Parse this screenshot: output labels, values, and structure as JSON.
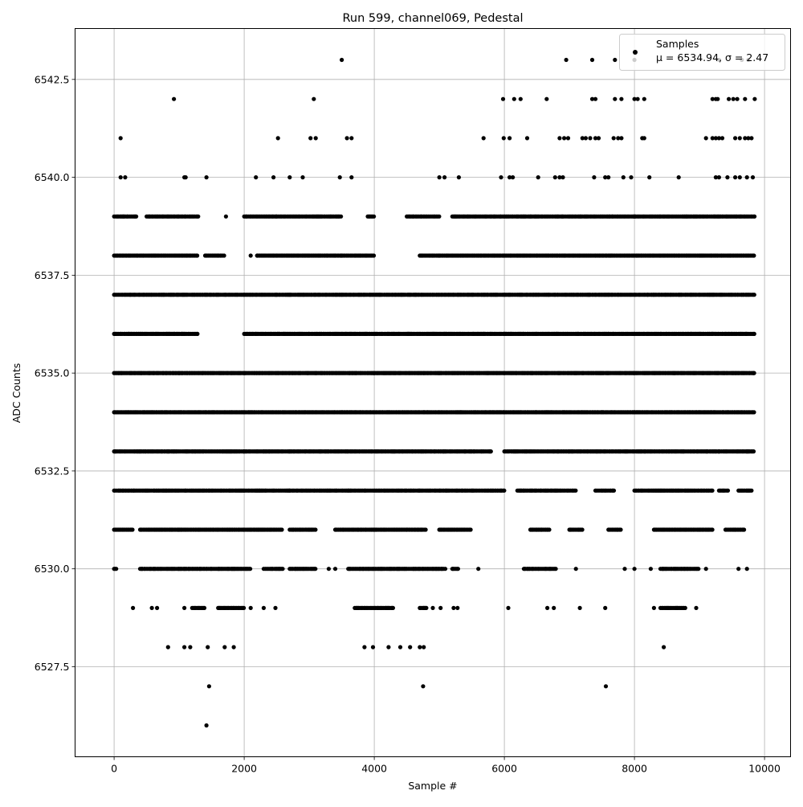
{
  "chart_data": {
    "type": "scatter",
    "title": "Run 599, channel069, Pedestal",
    "xlabel": "Sample #",
    "ylabel": "ADC Counts",
    "xlim": [
      -600,
      10400
    ],
    "ylim": [
      6525.2,
      6543.8
    ],
    "x_ticks": [
      0,
      2000,
      4000,
      6000,
      8000,
      10000
    ],
    "x_tick_labels": [
      "0",
      "2000",
      "4000",
      "6000",
      "8000",
      "10000"
    ],
    "y_ticks": [
      6527.5,
      6530.0,
      6532.5,
      6535.0,
      6537.5,
      6540.0,
      6542.5
    ],
    "y_tick_labels": [
      "6527.5",
      "6530.0",
      "6532.5",
      "6535.0",
      "6537.5",
      "6540.0",
      "6542.5"
    ],
    "grid": true,
    "legend_position": "top-right",
    "legend": {
      "label": "Samples",
      "stats": "μ = 6534.94, σ = 2.47"
    },
    "marker_color": "#000000",
    "series": [
      {
        "name": "Samples",
        "level_runs": {
          "6539": [
            [
              0,
              350
            ],
            [
              500,
              1300
            ],
            [
              2000,
              2500
            ],
            [
              2500,
              3500
            ],
            [
              3900,
              4000
            ],
            [
              4500,
              5000
            ],
            [
              5200,
              5800
            ],
            [
              5800,
              6400
            ],
            [
              6400,
              7000
            ],
            [
              7000,
              8000
            ],
            [
              8000,
              8800
            ],
            [
              8800,
              9850
            ]
          ],
          "6538": [
            [
              0,
              1300
            ],
            [
              1400,
              1700
            ],
            [
              2200,
              2500
            ],
            [
              2500,
              3500
            ],
            [
              3500,
              4000
            ],
            [
              4700,
              5000
            ],
            [
              5000,
              5600
            ],
            [
              5600,
              6300
            ],
            [
              6300,
              7000
            ],
            [
              7000,
              8000
            ],
            [
              8000,
              8900
            ],
            [
              8900,
              9850
            ]
          ],
          "6537": [
            [
              0,
              1700
            ],
            [
              1700,
              2500
            ],
            [
              2500,
              3500
            ],
            [
              3500,
              4200
            ],
            [
              4200,
              5000
            ],
            [
              5000,
              5800
            ],
            [
              5800,
              6500
            ],
            [
              6500,
              7300
            ],
            [
              7300,
              8200
            ],
            [
              8200,
              9000
            ],
            [
              9000,
              9850
            ]
          ],
          "6536": [
            [
              0,
              1300
            ],
            [
              2000,
              2600
            ],
            [
              2600,
              3500
            ],
            [
              3500,
              4300
            ],
            [
              4300,
              5200
            ],
            [
              5200,
              6000
            ],
            [
              6000,
              6800
            ],
            [
              6800,
              7600
            ],
            [
              7600,
              8500
            ],
            [
              8500,
              9200
            ],
            [
              9200,
              9850
            ]
          ],
          "6535": [
            [
              0,
              1000
            ],
            [
              1000,
              2000
            ],
            [
              2000,
              3000
            ],
            [
              3000,
              4000
            ],
            [
              4000,
              5000
            ],
            [
              5000,
              6000
            ],
            [
              6000,
              7000
            ],
            [
              7000,
              8000
            ],
            [
              8000,
              9000
            ],
            [
              9000,
              9850
            ]
          ],
          "6534": [
            [
              0,
              1000
            ],
            [
              1000,
              2000
            ],
            [
              2000,
              3000
            ],
            [
              3000,
              4000
            ],
            [
              4000,
              5000
            ],
            [
              5000,
              6000
            ],
            [
              6000,
              7000
            ],
            [
              7000,
              8000
            ],
            [
              8000,
              9000
            ],
            [
              9000,
              9850
            ]
          ],
          "6533": [
            [
              0,
              1000
            ],
            [
              1000,
              2000
            ],
            [
              2000,
              2700
            ],
            [
              2700,
              3600
            ],
            [
              3600,
              4500
            ],
            [
              4500,
              5400
            ],
            [
              5400,
              5800
            ],
            [
              6000,
              7000
            ],
            [
              7000,
              7900
            ],
            [
              7900,
              8600
            ],
            [
              8600,
              9300
            ],
            [
              9300,
              9850
            ]
          ],
          "6532": [
            [
              0,
              300
            ],
            [
              300,
              1200
            ],
            [
              1200,
              2000
            ],
            [
              2000,
              2700
            ],
            [
              2700,
              3600
            ],
            [
              3600,
              4500
            ],
            [
              4500,
              5500
            ],
            [
              5500,
              6000
            ],
            [
              6200,
              7100
            ],
            [
              7400,
              7700
            ],
            [
              8000,
              9200
            ],
            [
              9300,
              9450
            ],
            [
              9600,
              9800
            ]
          ],
          "6531": [
            [
              0,
              300
            ],
            [
              400,
              1000
            ],
            [
              1000,
              2000
            ],
            [
              2000,
              2600
            ],
            [
              2700,
              3100
            ],
            [
              3400,
              4000
            ],
            [
              4000,
              4800
            ],
            [
              5000,
              5500
            ],
            [
              6400,
              6700
            ],
            [
              7000,
              7200
            ],
            [
              7600,
              7800
            ],
            [
              8300,
              9200
            ],
            [
              9400,
              9700
            ]
          ],
          "6530": [
            [
              0,
              50
            ],
            [
              400,
              1000
            ],
            [
              1000,
              1600
            ],
            [
              1600,
              2100
            ],
            [
              2300,
              2600
            ],
            [
              2700,
              3100
            ],
            [
              3600,
              4300
            ],
            [
              4300,
              5100
            ],
            [
              5200,
              5300
            ],
            [
              6300,
              6800
            ],
            [
              8400,
              9000
            ]
          ],
          "6529": [
            [
              1200,
              1400
            ],
            [
              1600,
              2000
            ],
            [
              3700,
              4300
            ],
            [
              4700,
              4800
            ],
            [
              8400,
              8800
            ]
          ]
        },
        "points": [
          [
            3500,
            6543
          ],
          [
            6950,
            6543
          ],
          [
            7350,
            6543
          ],
          [
            7700,
            6543
          ],
          [
            8000,
            6543
          ],
          [
            9300,
            6543
          ],
          [
            9650,
            6543
          ],
          [
            9750,
            6543
          ],
          [
            920,
            6542
          ],
          [
            3070,
            6542
          ],
          [
            5980,
            6542
          ],
          [
            6150,
            6542
          ],
          [
            6250,
            6542
          ],
          [
            6650,
            6542
          ],
          [
            7350,
            6542
          ],
          [
            7400,
            6542
          ],
          [
            7700,
            6542
          ],
          [
            7800,
            6542
          ],
          [
            8000,
            6542
          ],
          [
            8050,
            6542
          ],
          [
            8150,
            6542
          ],
          [
            9200,
            6542
          ],
          [
            9250,
            6542
          ],
          [
            9280,
            6542
          ],
          [
            9450,
            6542
          ],
          [
            9520,
            6542
          ],
          [
            9580,
            6542
          ],
          [
            9700,
            6542
          ],
          [
            9850,
            6542
          ],
          [
            100,
            6541
          ],
          [
            2520,
            6541
          ],
          [
            3020,
            6541
          ],
          [
            3100,
            6541
          ],
          [
            3580,
            6541
          ],
          [
            3650,
            6541
          ],
          [
            5680,
            6541
          ],
          [
            5990,
            6541
          ],
          [
            6080,
            6541
          ],
          [
            6350,
            6541
          ],
          [
            6850,
            6541
          ],
          [
            6920,
            6541
          ],
          [
            6980,
            6541
          ],
          [
            7200,
            6541
          ],
          [
            7250,
            6541
          ],
          [
            7320,
            6541
          ],
          [
            7400,
            6541
          ],
          [
            7450,
            6541
          ],
          [
            7680,
            6541
          ],
          [
            7750,
            6541
          ],
          [
            7800,
            6541
          ],
          [
            8120,
            6541
          ],
          [
            8150,
            6541
          ],
          [
            9100,
            6541
          ],
          [
            9200,
            6541
          ],
          [
            9250,
            6541
          ],
          [
            9300,
            6541
          ],
          [
            9350,
            6541
          ],
          [
            9550,
            6541
          ],
          [
            9620,
            6541
          ],
          [
            9700,
            6541
          ],
          [
            9750,
            6541
          ],
          [
            9800,
            6541
          ],
          [
            100,
            6540
          ],
          [
            170,
            6540
          ],
          [
            1080,
            6540
          ],
          [
            1100,
            6540
          ],
          [
            1420,
            6540
          ],
          [
            2180,
            6540
          ],
          [
            2450,
            6540
          ],
          [
            2700,
            6540
          ],
          [
            2900,
            6540
          ],
          [
            3470,
            6540
          ],
          [
            3650,
            6540
          ],
          [
            5000,
            6540
          ],
          [
            5080,
            6540
          ],
          [
            5300,
            6540
          ],
          [
            5950,
            6540
          ],
          [
            6080,
            6540
          ],
          [
            6130,
            6540
          ],
          [
            6520,
            6540
          ],
          [
            6780,
            6540
          ],
          [
            6850,
            6540
          ],
          [
            6900,
            6540
          ],
          [
            7380,
            6540
          ],
          [
            7550,
            6540
          ],
          [
            7600,
            6540
          ],
          [
            7830,
            6540
          ],
          [
            7950,
            6540
          ],
          [
            8230,
            6540
          ],
          [
            8680,
            6540
          ],
          [
            9250,
            6540
          ],
          [
            9300,
            6540
          ],
          [
            9430,
            6540
          ],
          [
            9550,
            6540
          ],
          [
            9620,
            6540
          ],
          [
            9730,
            6540
          ],
          [
            9820,
            6540
          ],
          [
            1720,
            6539
          ],
          [
            150,
            6539
          ],
          [
            200,
            6539
          ],
          [
            2100,
            6538
          ],
          [
            2200,
            6538
          ],
          [
            830,
            6528
          ],
          [
            1080,
            6528
          ],
          [
            1170,
            6528
          ],
          [
            1440,
            6528
          ],
          [
            1700,
            6528
          ],
          [
            1840,
            6528
          ],
          [
            3850,
            6528
          ],
          [
            3980,
            6528
          ],
          [
            4220,
            6528
          ],
          [
            4400,
            6528
          ],
          [
            4550,
            6528
          ],
          [
            4700,
            6528
          ],
          [
            4760,
            6528
          ],
          [
            8450,
            6528
          ],
          [
            1460,
            6527
          ],
          [
            4750,
            6527
          ],
          [
            7560,
            6527
          ],
          [
            1420,
            6526
          ],
          [
            290,
            6529
          ],
          [
            580,
            6529
          ],
          [
            660,
            6529
          ],
          [
            1080,
            6529
          ],
          [
            2100,
            6529
          ],
          [
            2300,
            6529
          ],
          [
            2480,
            6529
          ],
          [
            4800,
            6529
          ],
          [
            4900,
            6529
          ],
          [
            5020,
            6529
          ],
          [
            5220,
            6529
          ],
          [
            5280,
            6529
          ],
          [
            6060,
            6529
          ],
          [
            6660,
            6529
          ],
          [
            6760,
            6529
          ],
          [
            7160,
            6529
          ],
          [
            7550,
            6529
          ],
          [
            8300,
            6529
          ],
          [
            8950,
            6529
          ],
          [
            7850,
            6530
          ],
          [
            8000,
            6530
          ],
          [
            8250,
            6530
          ],
          [
            9100,
            6530
          ],
          [
            9600,
            6530
          ],
          [
            9730,
            6530
          ],
          [
            5600,
            6530
          ],
          [
            3300,
            6530
          ],
          [
            3400,
            6530
          ],
          [
            7100,
            6530
          ]
        ]
      }
    ]
  }
}
